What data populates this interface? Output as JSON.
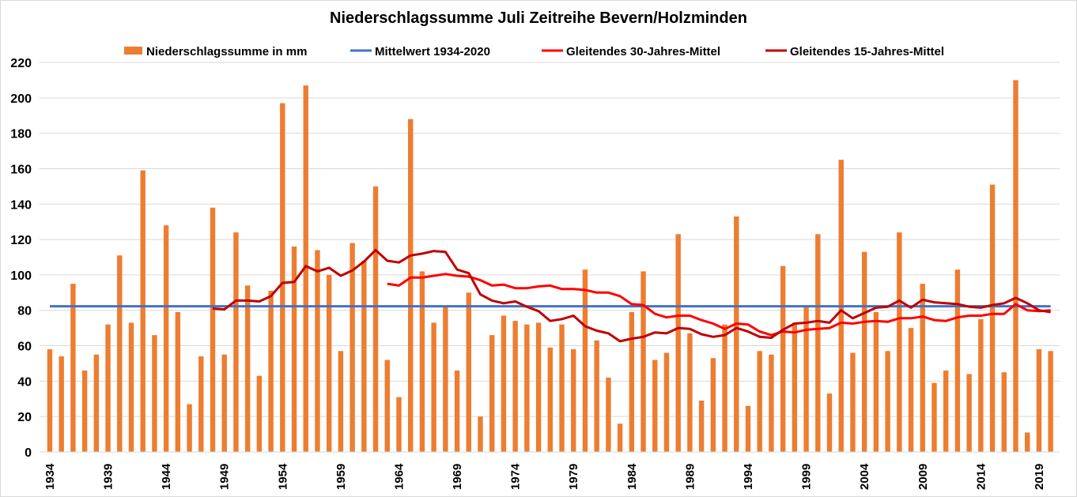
{
  "chart_data": {
    "type": "bar",
    "title": "Niederschlagssumme Juli Zeitreihe Bevern/Holzminden",
    "xlabel": "",
    "ylabel": "",
    "ylim": [
      0,
      220
    ],
    "yticks": [
      0,
      20,
      40,
      60,
      80,
      100,
      120,
      140,
      160,
      180,
      200,
      220
    ],
    "xtick_labels": [
      "1934",
      "1939",
      "1944",
      "1949",
      "1954",
      "1959",
      "1964",
      "1969",
      "1974",
      "1979",
      "1984",
      "1989",
      "1994",
      "1999",
      "2004",
      "2009",
      "2014",
      "2019"
    ],
    "grid": true,
    "legend_placement": "top",
    "years": [
      1934,
      1935,
      1936,
      1937,
      1938,
      1939,
      1940,
      1941,
      1942,
      1943,
      1944,
      1945,
      1946,
      1947,
      1948,
      1949,
      1950,
      1951,
      1952,
      1953,
      1954,
      1955,
      1956,
      1957,
      1958,
      1959,
      1960,
      1961,
      1962,
      1963,
      1964,
      1965,
      1966,
      1967,
      1968,
      1969,
      1970,
      1971,
      1972,
      1973,
      1974,
      1975,
      1976,
      1977,
      1978,
      1979,
      1980,
      1981,
      1982,
      1983,
      1984,
      1985,
      1986,
      1987,
      1988,
      1989,
      1990,
      1991,
      1992,
      1993,
      1994,
      1995,
      1996,
      1997,
      1998,
      1999,
      2000,
      2001,
      2002,
      2003,
      2004,
      2005,
      2006,
      2007,
      2008,
      2009,
      2010,
      2011,
      2012,
      2013,
      2014,
      2015,
      2016,
      2017,
      2018,
      2019,
      2020
    ],
    "series": [
      {
        "name": "Niederschlagssumme in mm",
        "kind": "bar",
        "color": "#ed7d31",
        "values": [
          58,
          54,
          95,
          46,
          55,
          72,
          111,
          73,
          159,
          66,
          128,
          79,
          27,
          54,
          138,
          55,
          124,
          94,
          43,
          91,
          197,
          116,
          207,
          114,
          100,
          57,
          118,
          108,
          150,
          52,
          31,
          188,
          102,
          73,
          82,
          46,
          90,
          20,
          66,
          77,
          74,
          72,
          73,
          59,
          72,
          58,
          103,
          63,
          42,
          16,
          79,
          102,
          52,
          56,
          123,
          67,
          29,
          53,
          72,
          133,
          26,
          57,
          55,
          105,
          73,
          82,
          123,
          33,
          165,
          56,
          113,
          79,
          57,
          124,
          70,
          95,
          39,
          46,
          103,
          44,
          75,
          151,
          45,
          210,
          11,
          58,
          57
        ]
      },
      {
        "name": "Mittelwert 1934-2020",
        "kind": "line",
        "color": "#4472c4",
        "constant": 82.3
      },
      {
        "name": "Gleitendes 30-Jahres-Mittel",
        "kind": "line",
        "color": "#ff0000",
        "start_year": 1963,
        "values": [
          95,
          94,
          98.5,
          98.5,
          99.5,
          100.5,
          99.5,
          99,
          97,
          94,
          94.5,
          92.5,
          92.5,
          93.5,
          94,
          92,
          92,
          91.5,
          90,
          90,
          88,
          83.5,
          83,
          78,
          76,
          77,
          77,
          74.5,
          72.5,
          69.5,
          72.5,
          72,
          68,
          66,
          68,
          67.5,
          69,
          69.5,
          70,
          73,
          72.5,
          73.5,
          74,
          73.5,
          75.5,
          75.5,
          76.5,
          74.5,
          74,
          76,
          77,
          77,
          78,
          78,
          83.5,
          80,
          79.5,
          80
        ]
      },
      {
        "name": "Gleitendes 15-Jahres-Mittel",
        "kind": "line",
        "color": "#c00000",
        "start_year": 1948,
        "values": [
          81,
          80.5,
          85.5,
          85.5,
          85,
          88,
          95.5,
          96,
          105,
          102,
          104,
          99.5,
          102.5,
          107.5,
          114,
          108,
          107,
          111,
          112,
          113.5,
          113,
          103,
          101,
          89,
          85.5,
          84,
          85,
          82,
          79.5,
          74,
          75,
          77,
          71,
          68.5,
          67,
          62.5,
          64,
          65,
          67.5,
          67,
          70,
          69.5,
          66.5,
          65,
          66,
          70,
          68,
          65,
          64.5,
          69,
          72.5,
          73,
          74,
          73,
          80,
          75.5,
          78.5,
          81.5,
          82,
          85.5,
          81.5,
          86,
          84.5,
          84,
          83.5,
          82,
          81.5,
          83,
          84,
          87,
          84,
          80,
          79
        ]
      }
    ]
  }
}
